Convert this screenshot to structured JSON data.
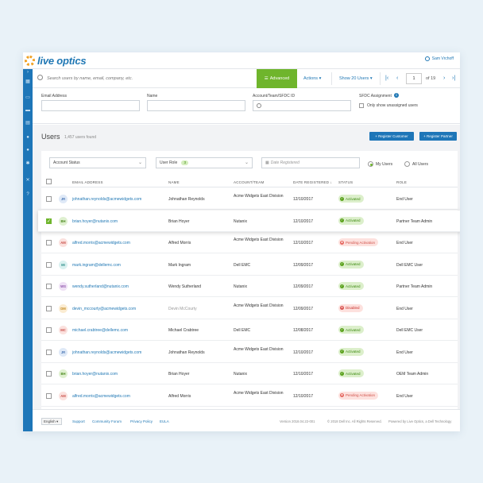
{
  "brand": {
    "logo_text": "live optics"
  },
  "header": {
    "user_name": "Sam Vrchoff"
  },
  "toolbar": {
    "search_placeholder": "Search users by name, email, company, etc.",
    "advanced_label": "Advanced",
    "actions_label": "Actions",
    "show_label": "Show 20 Users",
    "page_value": "1",
    "page_total": "of 19"
  },
  "filters": {
    "email_label": "Email Address",
    "name_label": "Name",
    "account_label": "Account/Team/SFDC ID",
    "sfdc_label": "SFDC Assignment",
    "unassigned_label": "Only show unassigned users"
  },
  "users": {
    "title": "Users",
    "count": "1,457 users found",
    "register_customer": "+ Register Customer",
    "register_partner": "+ Register Partner",
    "account_status": "Account Status",
    "user_role": "User Role",
    "role_count": "3",
    "date_placeholder": "Date Registered",
    "my_users": "My Users",
    "all_users": "All Users"
  },
  "table": {
    "headers": {
      "email": "EMAIL ADDRESS",
      "name": "NAME",
      "account": "ACCOUNT/TEAM",
      "date": "DATE REGISTERED ↓",
      "status": "STATUS",
      "role": "ROLE"
    },
    "rows": [
      {
        "initials": "JR",
        "avatar_bg": "#dfe9f7",
        "avatar_fg": "#4a76b5",
        "email": "johnathan.reynolds@acmewidgets.com",
        "name": "Johnathan Reynolds",
        "account": "Acme Widgets East Division",
        "date": "12/10/2017",
        "status": "Activated",
        "status_type": "act",
        "role": "End User",
        "checked": false
      },
      {
        "initials": "BH",
        "avatar_bg": "#dff0d0",
        "avatar_fg": "#4d8a20",
        "email": "brian.hoyer@nutanix.com",
        "name": "Brian Hoyer",
        "account": "Nutanix",
        "date": "12/10/2017",
        "status": "Activated",
        "status_type": "act",
        "role": "Partner Team Admin",
        "checked": true
      },
      {
        "initials": "AM",
        "avatar_bg": "#fbe1de",
        "avatar_fg": "#c9504a",
        "email": "alfred.morris@acmewidgets.com",
        "name": "Alfred Morris",
        "account": "Acme Widgets East Division",
        "date": "12/10/2017",
        "status": "Pending Activation",
        "status_type": "pend",
        "role": "End User",
        "checked": false
      },
      {
        "initials": "MI",
        "avatar_bg": "#daf1f0",
        "avatar_fg": "#2f8f8a",
        "email": "mark.ingram@dellemc.com",
        "name": "Mark Ingram",
        "account": "Dell EMC",
        "date": "12/09/2017",
        "status": "Activated",
        "status_type": "act",
        "role": "Dell EMC User",
        "checked": false
      },
      {
        "initials": "WS",
        "avatar_bg": "#efe1f5",
        "avatar_fg": "#8a4fa8",
        "email": "wendy.sutherland@nutanix.com",
        "name": "Wendy Sutherland",
        "account": "Nutanix",
        "date": "12/09/2017",
        "status": "Activated",
        "status_type": "act",
        "role": "Partner Team Admin",
        "checked": false
      },
      {
        "initials": "DM",
        "avatar_bg": "#fbecd2",
        "avatar_fg": "#c48a20",
        "email": "devin_mccourty@acmewidgets.com",
        "name": "Devin McCourty",
        "account": "Acme Widgets East Division",
        "date": "12/09/2017",
        "status": "Disabled",
        "status_type": "dis",
        "role": "End User",
        "checked": false
      },
      {
        "initials": "MC",
        "avatar_bg": "#fbe1de",
        "avatar_fg": "#c9504a",
        "email": "michael.crabtree@dellemc.com",
        "name": "Michael Crabtree",
        "account": "Dell EMC",
        "date": "12/08/2017",
        "status": "Activated",
        "status_type": "act",
        "role": "Dell EMC User",
        "checked": false
      },
      {
        "initials": "JR",
        "avatar_bg": "#dfe9f7",
        "avatar_fg": "#4a76b5",
        "email": "johnathan.reynolds@acmewidgets.com",
        "name": "Johnathan Reynolds",
        "account": "Acme Widgets East Division",
        "date": "12/10/2017",
        "status": "Activated",
        "status_type": "act",
        "role": "End User",
        "checked": false
      },
      {
        "initials": "BH",
        "avatar_bg": "#dff0d0",
        "avatar_fg": "#4d8a20",
        "email": "brian.hoyer@nutanix.com",
        "name": "Brian Hoyer",
        "account": "Nutanix",
        "date": "12/10/2017",
        "status": "Activated",
        "status_type": "act",
        "role": "OEM Team Admin",
        "checked": false
      },
      {
        "initials": "AM",
        "avatar_bg": "#fbe1de",
        "avatar_fg": "#c9504a",
        "email": "alfred.morris@acmewidgets.com",
        "name": "Alfred Morris",
        "account": "Acme Widgets East Division",
        "date": "12/10/2017",
        "status": "Pending Activation",
        "status_type": "pend",
        "role": "End User",
        "checked": false
      }
    ]
  },
  "footer": {
    "language": "English",
    "support": "Support",
    "community": "Community Forum",
    "privacy": "Privacy Policy",
    "eula": "EULA",
    "version": "Version 2018.04.22-001",
    "copyright": "© 2018 Dell Inc. All Rights Reserved.",
    "powered": "Powered by Live Optics, a Dell Technology"
  }
}
